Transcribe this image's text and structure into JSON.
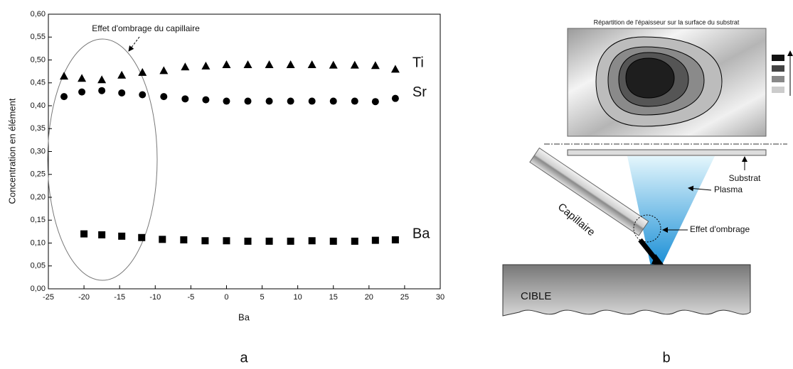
{
  "chart_data": {
    "type": "scatter",
    "x_label": "Ba",
    "y_label": "Concentration en élément",
    "annotation": "Effet d'ombrage du capillaire",
    "xlim": [
      -25,
      30
    ],
    "xticks": [
      -25,
      -20,
      -15,
      -10,
      -5,
      0,
      5,
      10,
      15,
      20,
      25,
      30
    ],
    "ylim": [
      0,
      0.6
    ],
    "yticks": [
      {
        "value": 0,
        "label": "0,00"
      },
      {
        "value": 0.05,
        "label": "0,05"
      },
      {
        "value": 0.1,
        "label": "0,10"
      },
      {
        "value": 0.15,
        "label": "0,15"
      },
      {
        "value": 0.2,
        "label": "0,20"
      },
      {
        "value": 0.25,
        "label": "0,25"
      },
      {
        "value": 0.3,
        "label": "0,30"
      },
      {
        "value": 0.35,
        "label": "0,35"
      },
      {
        "value": 0.4,
        "label": "0,40"
      },
      {
        "value": 0.45,
        "label": "0,45"
      },
      {
        "value": 0.5,
        "label": "0,50"
      },
      {
        "value": 0.55,
        "label": "0,55"
      },
      {
        "value": 0.6,
        "label": "0,60"
      }
    ],
    "series": [
      {
        "name": "Ti",
        "marker": "triangle",
        "color": "#000000",
        "x": [
          -22.8,
          -20.3,
          -17.5,
          -14.7,
          -11.8,
          -8.8,
          -5.8,
          -2.9,
          0,
          3,
          6,
          9,
          12,
          15,
          18,
          20.9,
          23.7
        ],
        "values": [
          0.465,
          0.46,
          0.457,
          0.467,
          0.473,
          0.477,
          0.485,
          0.487,
          0.49,
          0.49,
          0.49,
          0.49,
          0.49,
          0.489,
          0.489,
          0.488,
          0.48
        ]
      },
      {
        "name": "Sr",
        "marker": "circle",
        "color": "#000000",
        "x": [
          -22.8,
          -20.3,
          -17.5,
          -14.7,
          -11.8,
          -8.8,
          -5.8,
          -2.9,
          0,
          3,
          6,
          9,
          12,
          15,
          18,
          20.9,
          23.7
        ],
        "values": [
          0.42,
          0.43,
          0.433,
          0.428,
          0.424,
          0.42,
          0.415,
          0.413,
          0.41,
          0.41,
          0.41,
          0.41,
          0.41,
          0.41,
          0.41,
          0.409,
          0.416
        ]
      },
      {
        "name": "Ba",
        "marker": "square",
        "color": "#000000",
        "x": [
          -20,
          -17.5,
          -14.7,
          -11.9,
          -9,
          -6,
          -3,
          0,
          3,
          6,
          9,
          12,
          15,
          18,
          20.9,
          23.7
        ],
        "values": [
          0.12,
          0.118,
          0.115,
          0.112,
          0.108,
          0.107,
          0.105,
          0.105,
          0.104,
          0.104,
          0.104,
          0.105,
          0.104,
          0.104,
          0.106,
          0.107
        ]
      }
    ]
  },
  "diagram": {
    "title": "Répartition de l'épaisseur sur la surface du substrat",
    "substrate": "Substrat",
    "plasma": "Plasma",
    "capillary": "Capillaire",
    "shadow": "Effet d'ombrage",
    "target": "CIBLE"
  },
  "panel_labels": [
    "a",
    "b"
  ]
}
